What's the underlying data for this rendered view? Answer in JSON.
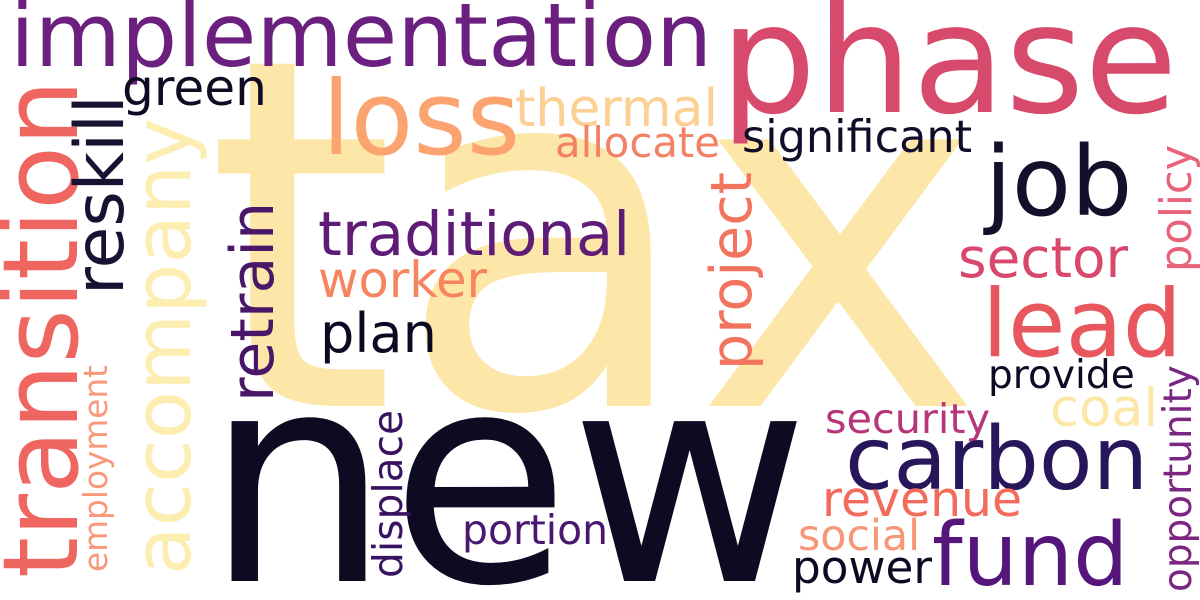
{
  "words": [
    {
      "text": "tax",
      "color": "#fce6a8"
    },
    {
      "text": "new",
      "color": "#0d0a22"
    },
    {
      "text": "phase",
      "color": "#d74a6c"
    },
    {
      "text": "implementation",
      "color": "#6b1f7e"
    },
    {
      "text": "transition",
      "color": "#ef6560"
    },
    {
      "text": "accompany",
      "color": "#fcedb0"
    },
    {
      "text": "loss",
      "color": "#fba470"
    },
    {
      "text": "job",
      "color": "#12102a"
    },
    {
      "text": "thermal",
      "color": "#fcd092"
    },
    {
      "text": "green",
      "color": "#0e0b22"
    },
    {
      "text": "reskill",
      "color": "#171232"
    },
    {
      "text": "allocate",
      "color": "#f38163"
    },
    {
      "text": "significant",
      "color": "#110d28"
    },
    {
      "text": "traditional",
      "color": "#5f1c77"
    },
    {
      "text": "project",
      "color": "#f3745e"
    },
    {
      "text": "sector",
      "color": "#d8476c"
    },
    {
      "text": "policy",
      "color": "#e8637a"
    },
    {
      "text": "worker",
      "color": "#f6845e"
    },
    {
      "text": "retrain",
      "color": "#4a1668"
    },
    {
      "text": "lead",
      "color": "#e9575e"
    },
    {
      "text": "plan",
      "color": "#0c0a22"
    },
    {
      "text": "provide",
      "color": "#0d0b24"
    },
    {
      "text": "employment",
      "color": "#f9997c"
    },
    {
      "text": "security",
      "color": "#b73679"
    },
    {
      "text": "coal",
      "color": "#fde7a6"
    },
    {
      "text": "carbon",
      "color": "#27175a"
    },
    {
      "text": "opportunity",
      "color": "#7b2682"
    },
    {
      "text": "displace",
      "color": "#3a1360"
    },
    {
      "text": "revenue",
      "color": "#f26b5b"
    },
    {
      "text": "portion",
      "color": "#4a1770"
    },
    {
      "text": "social",
      "color": "#f79778"
    },
    {
      "text": "fund",
      "color": "#55157a"
    },
    {
      "text": "power",
      "color": "#0c0a22"
    }
  ]
}
